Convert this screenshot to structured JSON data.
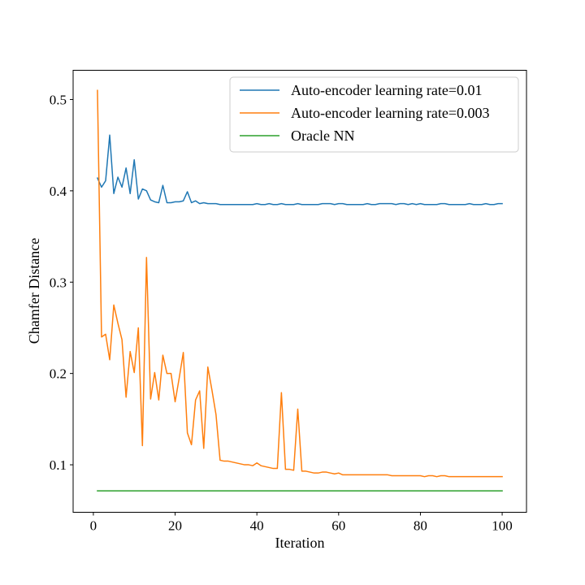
{
  "chart_data": {
    "type": "line",
    "title": "",
    "xlabel": "Iteration",
    "ylabel": "Chamfer Distance",
    "xlim": [
      -4.95,
      105.95
    ],
    "ylim": [
      0.048,
      0.532
    ],
    "xticks": [
      0,
      20,
      40,
      60,
      80,
      100
    ],
    "yticks": [
      0.1,
      0.2,
      0.3,
      0.4,
      0.5
    ],
    "ytick_labels": [
      "0.1",
      "0.2",
      "0.3",
      "0.4",
      "0.5"
    ],
    "grid": false,
    "legend_position": "top-right",
    "series": [
      {
        "name": "Auto-encoder learning rate=0.01",
        "color": "#1f77b4",
        "x": [
          1,
          2,
          3,
          4,
          5,
          6,
          7,
          8,
          9,
          10,
          11,
          12,
          13,
          14,
          15,
          16,
          17,
          18,
          19,
          20,
          21,
          22,
          23,
          24,
          25,
          26,
          27,
          28,
          29,
          30,
          31,
          32,
          33,
          34,
          35,
          36,
          37,
          38,
          39,
          40,
          41,
          42,
          43,
          44,
          45,
          46,
          47,
          48,
          49,
          50,
          51,
          52,
          53,
          54,
          55,
          56,
          57,
          58,
          59,
          60,
          61,
          62,
          63,
          64,
          65,
          66,
          67,
          68,
          69,
          70,
          71,
          72,
          73,
          74,
          75,
          76,
          77,
          78,
          79,
          80,
          81,
          82,
          83,
          84,
          85,
          86,
          87,
          88,
          89,
          90,
          91,
          92,
          93,
          94,
          95,
          96,
          97,
          98,
          99,
          100
        ],
        "y": [
          0.414,
          0.404,
          0.411,
          0.461,
          0.397,
          0.415,
          0.404,
          0.425,
          0.397,
          0.434,
          0.391,
          0.402,
          0.4,
          0.39,
          0.388,
          0.387,
          0.406,
          0.387,
          0.387,
          0.388,
          0.388,
          0.389,
          0.399,
          0.387,
          0.389,
          0.386,
          0.387,
          0.386,
          0.386,
          0.386,
          0.385,
          0.385,
          0.385,
          0.385,
          0.385,
          0.385,
          0.385,
          0.385,
          0.385,
          0.386,
          0.385,
          0.385,
          0.386,
          0.385,
          0.385,
          0.386,
          0.385,
          0.385,
          0.385,
          0.386,
          0.385,
          0.385,
          0.385,
          0.385,
          0.385,
          0.386,
          0.386,
          0.386,
          0.385,
          0.386,
          0.386,
          0.385,
          0.385,
          0.385,
          0.385,
          0.385,
          0.386,
          0.385,
          0.385,
          0.386,
          0.386,
          0.386,
          0.386,
          0.385,
          0.386,
          0.386,
          0.385,
          0.386,
          0.385,
          0.386,
          0.385,
          0.385,
          0.385,
          0.385,
          0.386,
          0.386,
          0.385,
          0.385,
          0.385,
          0.385,
          0.385,
          0.386,
          0.385,
          0.385,
          0.385,
          0.386,
          0.385,
          0.385,
          0.386,
          0.386
        ]
      },
      {
        "name": "Auto-encoder learning rate=0.003",
        "color": "#ff7f0e",
        "x": [
          1,
          2,
          3,
          4,
          5,
          6,
          7,
          8,
          9,
          10,
          11,
          12,
          13,
          14,
          15,
          16,
          17,
          18,
          19,
          20,
          21,
          22,
          23,
          24,
          25,
          26,
          27,
          28,
          29,
          30,
          31,
          32,
          33,
          34,
          35,
          36,
          37,
          38,
          39,
          40,
          41,
          42,
          43,
          44,
          45,
          46,
          47,
          48,
          49,
          50,
          51,
          52,
          53,
          54,
          55,
          56,
          57,
          58,
          59,
          60,
          61,
          62,
          63,
          64,
          65,
          66,
          67,
          68,
          69,
          70,
          71,
          72,
          73,
          74,
          75,
          76,
          77,
          78,
          79,
          80,
          81,
          82,
          83,
          84,
          85,
          86,
          87,
          88,
          89,
          90,
          91,
          92,
          93,
          94,
          95,
          96,
          97,
          98,
          99,
          100
        ],
        "y": [
          0.51,
          0.24,
          0.243,
          0.215,
          0.275,
          0.255,
          0.237,
          0.174,
          0.224,
          0.201,
          0.25,
          0.121,
          0.327,
          0.172,
          0.201,
          0.171,
          0.22,
          0.2,
          0.2,
          0.169,
          0.195,
          0.223,
          0.135,
          0.122,
          0.171,
          0.181,
          0.118,
          0.207,
          0.182,
          0.155,
          0.105,
          0.104,
          0.104,
          0.103,
          0.102,
          0.101,
          0.1,
          0.1,
          0.099,
          0.102,
          0.099,
          0.098,
          0.097,
          0.096,
          0.096,
          0.179,
          0.095,
          0.095,
          0.094,
          0.161,
          0.093,
          0.093,
          0.092,
          0.091,
          0.091,
          0.092,
          0.092,
          0.091,
          0.09,
          0.091,
          0.089,
          0.089,
          0.089,
          0.089,
          0.089,
          0.089,
          0.089,
          0.089,
          0.089,
          0.089,
          0.089,
          0.089,
          0.088,
          0.088,
          0.088,
          0.088,
          0.088,
          0.088,
          0.088,
          0.088,
          0.087,
          0.088,
          0.088,
          0.087,
          0.088,
          0.088,
          0.087,
          0.087,
          0.087,
          0.087,
          0.087,
          0.087,
          0.087,
          0.087,
          0.087,
          0.087,
          0.087,
          0.087,
          0.087,
          0.087
        ]
      },
      {
        "name": "Oracle NN",
        "color": "#2ca02c",
        "x": [
          1,
          100
        ],
        "y": [
          0.0715,
          0.0715
        ]
      }
    ]
  }
}
